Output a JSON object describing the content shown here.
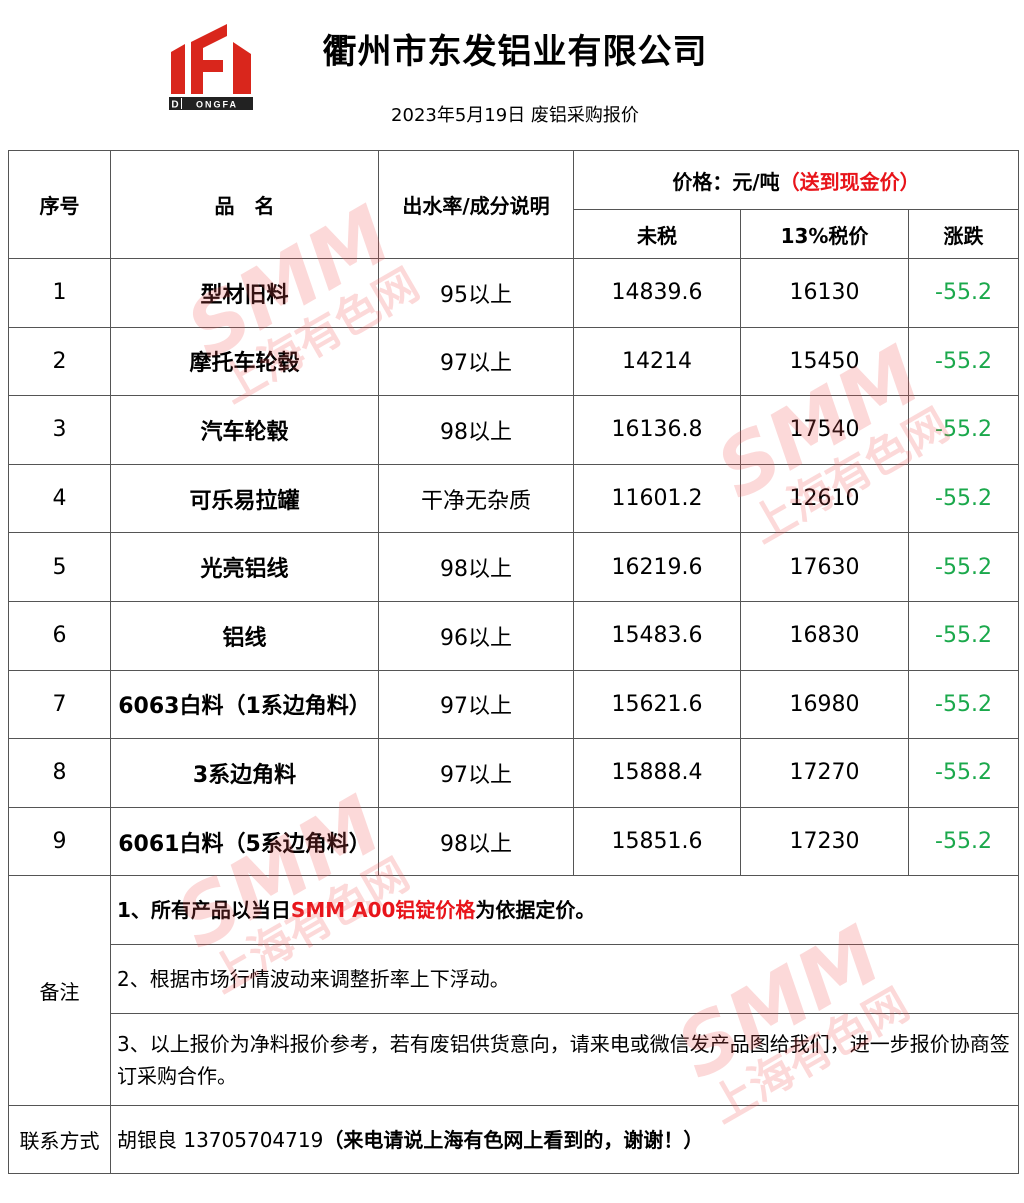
{
  "header": {
    "logo_text": "DONGFA",
    "company": "衢州市东发铝业有限公司",
    "subtitle": "2023年5月19日 废铝采购报价"
  },
  "table": {
    "col_seq": "序号",
    "col_name": "品　名",
    "col_desc": "出水率/成分说明",
    "price_label": "价格：元/吨",
    "price_note": "（送到现金价）",
    "col_pretax": "未税",
    "col_tax": "13%税价",
    "col_change": "涨跌",
    "rows": [
      {
        "seq": "1",
        "name": "型材旧料",
        "desc": "95以上",
        "pretax": "14839.6",
        "tax": "16130",
        "change": "-55.2"
      },
      {
        "seq": "2",
        "name": "摩托车轮毂",
        "desc": "97以上",
        "pretax": "14214",
        "tax": "15450",
        "change": "-55.2"
      },
      {
        "seq": "3",
        "name": "汽车轮毂",
        "desc": "98以上",
        "pretax": "16136.8",
        "tax": "17540",
        "change": "-55.2"
      },
      {
        "seq": "4",
        "name": "可乐易拉罐",
        "desc": "干净无杂质",
        "pretax": "11601.2",
        "tax": "12610",
        "change": "-55.2"
      },
      {
        "seq": "5",
        "name": "光亮铝线",
        "desc": "98以上",
        "pretax": "16219.6",
        "tax": "17630",
        "change": "-55.2"
      },
      {
        "seq": "6",
        "name": "铝线",
        "desc": "96以上",
        "pretax": "15483.6",
        "tax": "16830",
        "change": "-55.2"
      },
      {
        "seq": "7",
        "name": "6063白料（1系边角料）",
        "desc": "97以上",
        "pretax": "15621.6",
        "tax": "16980",
        "change": "-55.2"
      },
      {
        "seq": "8",
        "name": "3系边角料",
        "desc": "97以上",
        "pretax": "15888.4",
        "tax": "17270",
        "change": "-55.2"
      },
      {
        "seq": "9",
        "name": "6061白料（5系边角料）",
        "desc": "98以上",
        "pretax": "15851.6",
        "tax": "17230",
        "change": "-55.2"
      }
    ],
    "change_color": "#1aa84b"
  },
  "notes": {
    "label": "备注",
    "note1_a": "1、所有产品以当日",
    "note1_b": "SMM A00铝锭价格",
    "note1_c": "为依据定价。",
    "note2": "2、根据市场行情波动来调整折率上下浮动。",
    "note3": "3、以上报价为净料报价参考，若有废铝供货意向，请来电或微信发产品图给我们，进一步报价协商签订采购合作。"
  },
  "contact": {
    "label": "联系方式",
    "name_phone": "胡银良  13705704719",
    "remark": "（来电请说上海有色网上看到的，谢谢！）"
  },
  "watermark": {
    "brand": "SMM",
    "cn": "上海有色网"
  },
  "colors": {
    "accent_red": "#e8141a",
    "logo_red": "#d9261c"
  }
}
